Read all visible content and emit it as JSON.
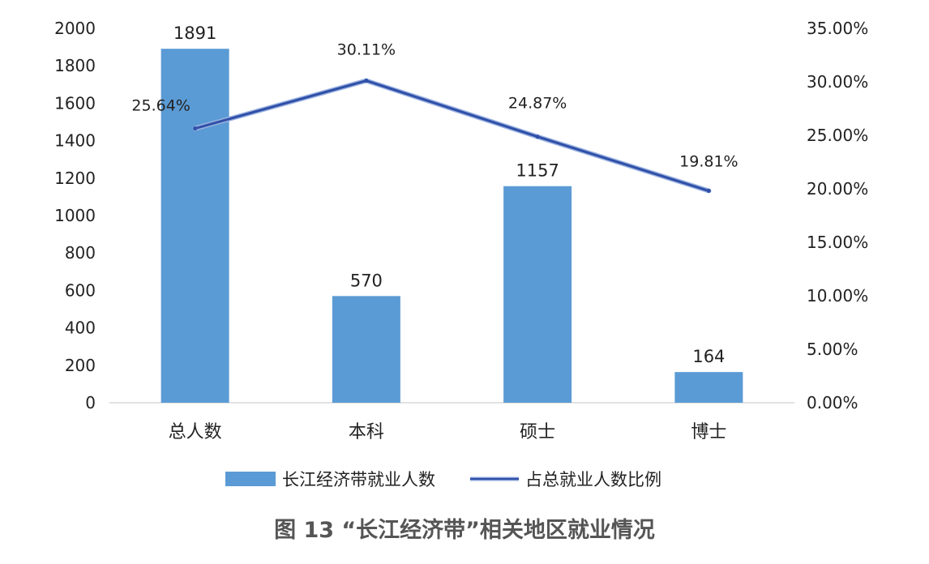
{
  "caption": "图 13 “长江经济带”相关地区就业情况",
  "chart_data": {
    "type": "bar",
    "categories": [
      "总人数",
      "本科",
      "硕士",
      "博士"
    ],
    "series": [
      {
        "name": "长江经济带就业人数",
        "type": "bar",
        "axis": "left",
        "values": [
          1891,
          570,
          1157,
          164
        ],
        "labels": [
          "1891",
          "570",
          "1157",
          "164"
        ],
        "color": "#5b9bd5"
      },
      {
        "name": "占总就业人数比例",
        "type": "line",
        "axis": "right",
        "values": [
          25.64,
          30.11,
          24.87,
          19.81
        ],
        "labels": [
          "25.64%",
          "30.11%",
          "24.87%",
          "19.81%"
        ],
        "color": "#2f4fa8"
      }
    ],
    "y_left": {
      "ylim": [
        0,
        2000
      ],
      "ticks": [
        "0",
        "200",
        "400",
        "600",
        "800",
        "1000",
        "1200",
        "1400",
        "1600",
        "1800",
        "2000"
      ]
    },
    "y_right": {
      "ylim": [
        0,
        35
      ],
      "ticks": [
        "0.00%",
        "5.00%",
        "10.00%",
        "15.00%",
        "20.00%",
        "25.00%",
        "30.00%",
        "35.00%"
      ]
    },
    "grid": false,
    "legend": "bottom"
  }
}
